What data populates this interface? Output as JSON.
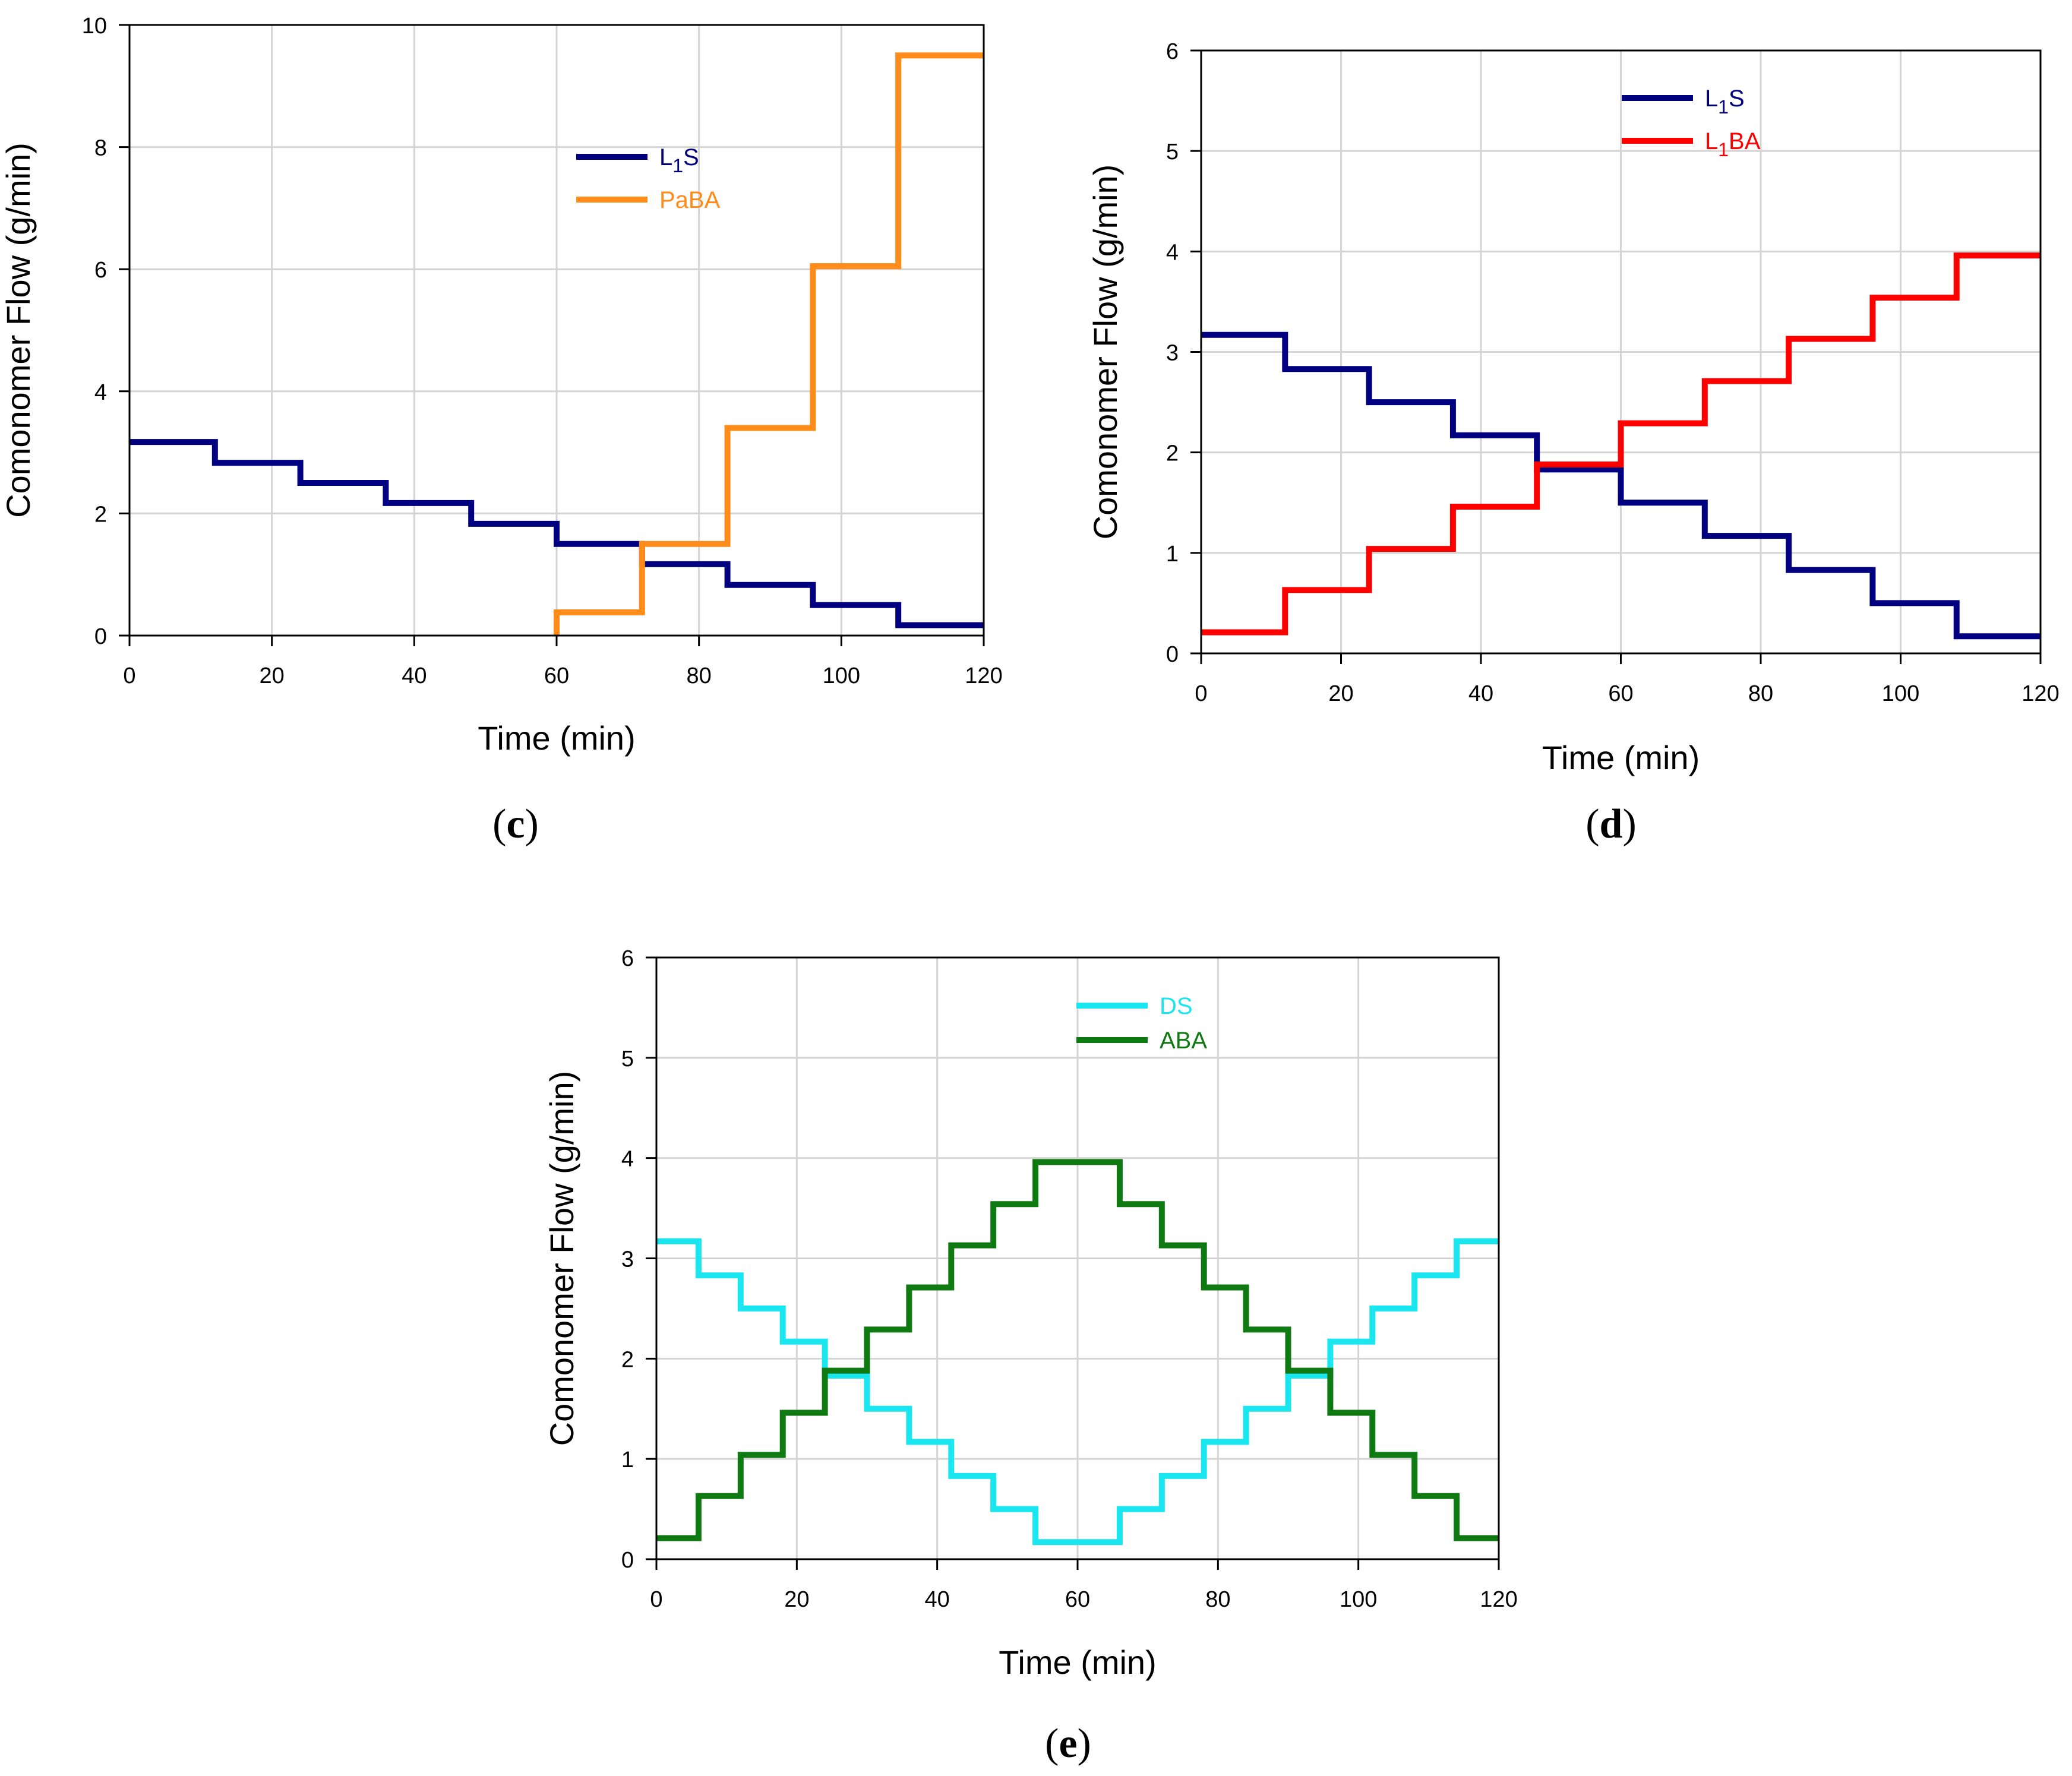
{
  "chart_data": [
    {
      "type": "line",
      "panel_label": "c",
      "title": "",
      "xlabel": "Time (min)",
      "ylabel": "Comonomer Flow (g/min)",
      "xlim": [
        0,
        120
      ],
      "ylim": [
        0,
        10
      ],
      "xticks": [
        0,
        20,
        40,
        60,
        80,
        100,
        120
      ],
      "yticks": [
        0,
        2,
        4,
        6,
        8,
        10
      ],
      "grid": true,
      "legend_position": "top-center",
      "series": [
        {
          "name": "L1S",
          "legend_main": "L",
          "legend_sub": "1",
          "legend_rest": "S",
          "color": "#000080",
          "x": [
            0,
            12,
            12,
            24,
            24,
            36,
            36,
            48,
            48,
            60,
            60,
            72,
            72,
            84,
            84,
            96,
            96,
            108,
            108,
            120
          ],
          "y": [
            3.17,
            3.17,
            2.83,
            2.83,
            2.5,
            2.5,
            2.17,
            2.17,
            1.83,
            1.83,
            1.5,
            1.5,
            1.17,
            1.17,
            0.83,
            0.83,
            0.5,
            0.5,
            0.17,
            0.17
          ]
        },
        {
          "name": "PaBA",
          "legend_main": "PaBA",
          "legend_sub": "",
          "legend_rest": "",
          "color": "#FF8C1A",
          "x": [
            60,
            60,
            72,
            72,
            84,
            84,
            96,
            96,
            108,
            108,
            120
          ],
          "y": [
            0,
            0.38,
            0.38,
            1.5,
            1.5,
            3.4,
            3.4,
            6.05,
            6.05,
            9.5,
            9.5
          ]
        }
      ]
    },
    {
      "type": "line",
      "panel_label": "d",
      "title": "",
      "xlabel": "Time (min)",
      "ylabel": "Comonomer Flow (g/min)",
      "xlim": [
        0,
        120
      ],
      "ylim": [
        0,
        6
      ],
      "xticks": [
        0,
        20,
        40,
        60,
        80,
        100,
        120
      ],
      "yticks": [
        0,
        1,
        2,
        3,
        4,
        5,
        6
      ],
      "grid": true,
      "legend_position": "top-center",
      "series": [
        {
          "name": "L1S",
          "legend_main": "L",
          "legend_sub": "1",
          "legend_rest": "S",
          "color": "#000080",
          "x": [
            0,
            12,
            12,
            24,
            24,
            36,
            36,
            48,
            48,
            60,
            60,
            72,
            72,
            84,
            84,
            96,
            96,
            108,
            108,
            120
          ],
          "y": [
            3.17,
            3.17,
            2.83,
            2.83,
            2.5,
            2.5,
            2.17,
            2.17,
            1.83,
            1.83,
            1.5,
            1.5,
            1.17,
            1.17,
            0.83,
            0.83,
            0.5,
            0.5,
            0.17,
            0.17
          ]
        },
        {
          "name": "L1BA",
          "legend_main": "L",
          "legend_sub": "1",
          "legend_rest": "BA",
          "color": "#FF0000",
          "x": [
            0,
            12,
            12,
            24,
            24,
            36,
            36,
            48,
            48,
            60,
            60,
            72,
            72,
            84,
            84,
            96,
            96,
            108,
            108,
            120
          ],
          "y": [
            0.21,
            0.21,
            0.63,
            0.63,
            1.04,
            1.04,
            1.46,
            1.46,
            1.88,
            1.88,
            2.29,
            2.29,
            2.71,
            2.71,
            3.13,
            3.13,
            3.54,
            3.54,
            3.96,
            3.96
          ]
        }
      ]
    },
    {
      "type": "line",
      "panel_label": "e",
      "title": "",
      "xlabel": "Time (min)",
      "ylabel": "Comonomer Flow (g/min)",
      "xlim": [
        0,
        120
      ],
      "ylim": [
        0,
        6
      ],
      "xticks": [
        0,
        20,
        40,
        60,
        80,
        100,
        120
      ],
      "yticks": [
        0,
        1,
        2,
        3,
        4,
        5,
        6
      ],
      "grid": true,
      "legend_position": "top-center",
      "series": [
        {
          "name": "DS",
          "legend_main": "DS",
          "legend_sub": "",
          "legend_rest": "",
          "color": "#1AE6F0",
          "x": [
            0,
            6,
            6,
            12,
            12,
            18,
            18,
            24,
            24,
            30,
            30,
            36,
            36,
            42,
            42,
            48,
            48,
            54,
            54,
            66,
            66,
            72,
            72,
            78,
            78,
            84,
            84,
            90,
            90,
            96,
            96,
            102,
            102,
            108,
            108,
            114,
            114,
            120
          ],
          "y": [
            3.17,
            3.17,
            2.83,
            2.83,
            2.5,
            2.5,
            2.17,
            2.17,
            1.83,
            1.83,
            1.5,
            1.5,
            1.17,
            1.17,
            0.83,
            0.83,
            0.5,
            0.5,
            0.17,
            0.17,
            0.5,
            0.5,
            0.83,
            0.83,
            1.17,
            1.17,
            1.5,
            1.5,
            1.83,
            1.83,
            2.17,
            2.17,
            2.5,
            2.5,
            2.83,
            2.83,
            3.17,
            3.17
          ]
        },
        {
          "name": "ABA",
          "legend_main": "ABA",
          "legend_sub": "",
          "legend_rest": "",
          "color": "#0F7A12",
          "x": [
            0,
            6,
            6,
            12,
            12,
            18,
            18,
            24,
            24,
            30,
            30,
            36,
            36,
            42,
            42,
            48,
            48,
            54,
            54,
            66,
            66,
            72,
            72,
            78,
            78,
            84,
            84,
            90,
            90,
            96,
            96,
            102,
            102,
            108,
            108,
            114,
            114,
            120
          ],
          "y": [
            0.21,
            0.21,
            0.63,
            0.63,
            1.04,
            1.04,
            1.46,
            1.46,
            1.88,
            1.88,
            2.29,
            2.29,
            2.71,
            2.71,
            3.13,
            3.13,
            3.54,
            3.54,
            3.96,
            3.96,
            3.54,
            3.54,
            3.13,
            3.13,
            2.71,
            2.71,
            2.29,
            2.29,
            1.88,
            1.88,
            1.46,
            1.46,
            1.04,
            1.04,
            0.63,
            0.63,
            0.21,
            0.21
          ]
        }
      ]
    }
  ]
}
